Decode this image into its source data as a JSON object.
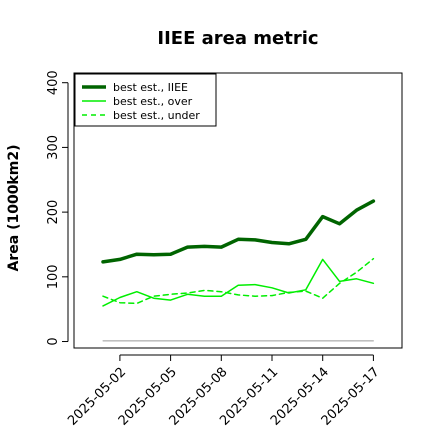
{
  "chart_data": {
    "type": "line",
    "title": "IIEE area metric",
    "xlabel": "",
    "ylabel": "Area (1000km2)",
    "ylim": [
      -10,
      415
    ],
    "yticks": [
      0,
      100,
      200,
      300,
      400
    ],
    "x": [
      "2025-05-01",
      "2025-05-02",
      "2025-05-03",
      "2025-05-04",
      "2025-05-05",
      "2025-05-06",
      "2025-05-07",
      "2025-05-08",
      "2025-05-09",
      "2025-05-10",
      "2025-05-11",
      "2025-05-12",
      "2025-05-13",
      "2025-05-14",
      "2025-05-15",
      "2025-05-16",
      "2025-05-17"
    ],
    "xticks": [
      "2025-05-02",
      "2025-05-05",
      "2025-05-08",
      "2025-05-11",
      "2025-05-14",
      "2025-05-17"
    ],
    "legend_position": "top-left",
    "grid": false,
    "series": [
      {
        "name": "best est., IIEE",
        "color": "#006400",
        "style": "solid-thick",
        "values": [
          123,
          127,
          135,
          134,
          135,
          146,
          147,
          146,
          158,
          157,
          153,
          151,
          158,
          193,
          182,
          203,
          217
        ]
      },
      {
        "name": "best est., over",
        "color": "#00ee00",
        "style": "solid",
        "values": [
          55,
          68,
          77,
          67,
          64,
          73,
          70,
          70,
          87,
          88,
          83,
          75,
          80,
          127,
          93,
          97,
          90
        ]
      },
      {
        "name": "best est., under",
        "color": "#00ee00",
        "style": "dashed",
        "values": [
          70,
          60,
          59,
          70,
          73,
          75,
          79,
          77,
          72,
          70,
          71,
          76,
          78,
          67,
          90,
          107,
          128
        ]
      },
      {
        "color": "#999999",
        "style": "solid-thin",
        "values": [
          1,
          1,
          1,
          1,
          1,
          1,
          1,
          1,
          1,
          1,
          1,
          1,
          1,
          1,
          1,
          1,
          1
        ]
      }
    ]
  }
}
